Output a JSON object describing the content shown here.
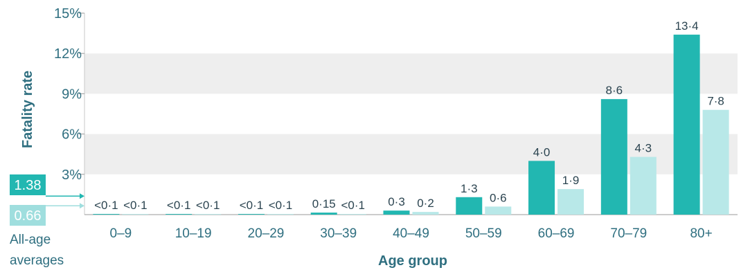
{
  "chart_data": {
    "type": "bar",
    "xlabel": "Age group",
    "ylabel": "Fatality rate",
    "ylim": [
      0,
      15
    ],
    "yticks": [
      3,
      6,
      9,
      12,
      15
    ],
    "ytick_labels": [
      "3%",
      "6%",
      "9%",
      "12%",
      "15%"
    ],
    "grid": "alternating horizontal bands",
    "categories": [
      "0–9",
      "10–19",
      "20–29",
      "30–39",
      "40–49",
      "50–59",
      "60–69",
      "70–79",
      "80+"
    ],
    "series": [
      {
        "values": [
          0.05,
          0.05,
          0.05,
          0.15,
          0.3,
          1.3,
          4.0,
          8.6,
          13.4
        ],
        "labels": [
          "<0·1",
          "<0·1",
          "<0·1",
          "0·15",
          "0·3",
          "1·3",
          "4·0",
          "8·6",
          "13·4"
        ],
        "color": "#22b7b1"
      },
      {
        "values": [
          0.05,
          0.05,
          0.05,
          0.05,
          0.2,
          0.6,
          1.9,
          4.3,
          7.8
        ],
        "labels": [
          "<0·1",
          "<0·1",
          "<0·1",
          "<0·1",
          "0·2",
          "0·6",
          "1·9",
          "4·3",
          "7·8"
        ],
        "color": "#b8e8e8"
      }
    ],
    "averages": {
      "values": [
        1.38,
        0.66
      ],
      "labels": [
        "1.38",
        "0.66"
      ],
      "caption_line1": "All-age",
      "caption_line2": "averages"
    }
  }
}
